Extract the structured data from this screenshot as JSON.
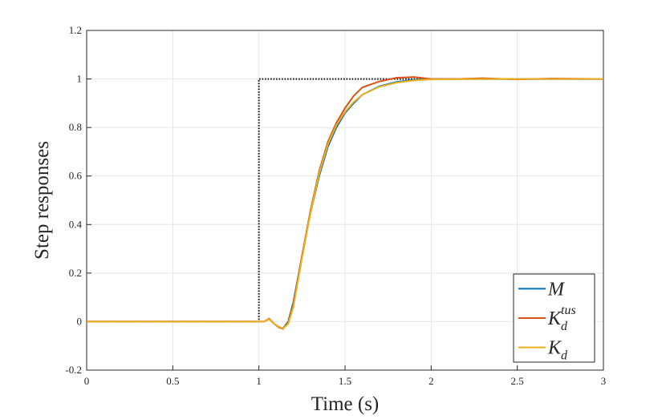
{
  "chart_data": {
    "type": "line",
    "xlabel": "Time (s)",
    "ylabel": "Step responses",
    "xlim": [
      0,
      3
    ],
    "ylim": [
      -0.2,
      1.2
    ],
    "xticks": [
      0,
      0.5,
      1,
      1.5,
      2,
      2.5,
      3
    ],
    "yticks": [
      -0.2,
      0,
      0.2,
      0.4,
      0.6,
      0.8,
      1,
      1.2
    ],
    "grid": true,
    "legend": "southeast",
    "series": [
      {
        "color": "#000000",
        "style": "dotted",
        "x": [
          0,
          1,
          1,
          3
        ],
        "values": [
          0,
          0,
          1,
          1
        ]
      },
      {
        "name": "M",
        "color": "#0072BD",
        "x": [
          0,
          1,
          1.03,
          1.06,
          1.09,
          1.12,
          1.14,
          1.17,
          1.2,
          1.25,
          1.3,
          1.35,
          1.4,
          1.45,
          1.5,
          1.55,
          1.6,
          1.7,
          1.8,
          1.9,
          2,
          2.3,
          2.6,
          3
        ],
        "values": [
          0,
          0,
          0.0,
          0.01,
          -0.01,
          -0.025,
          -0.028,
          0.0,
          0.08,
          0.27,
          0.45,
          0.6,
          0.72,
          0.8,
          0.86,
          0.9,
          0.935,
          0.97,
          0.988,
          0.996,
          1.0,
          1.0,
          1.0,
          1.0
        ]
      },
      {
        "name": "K",
        "sub": "d",
        "sup": "tus",
        "color": "#D95319",
        "x": [
          0,
          1,
          1.03,
          1.06,
          1.09,
          1.12,
          1.14,
          1.17,
          1.2,
          1.25,
          1.3,
          1.35,
          1.4,
          1.45,
          1.5,
          1.55,
          1.6,
          1.7,
          1.8,
          1.9,
          2,
          2.15,
          2.3,
          2.5,
          2.7,
          3
        ],
        "values": [
          0,
          0,
          0.0,
          0.012,
          -0.01,
          -0.025,
          -0.03,
          -0.005,
          0.07,
          0.27,
          0.46,
          0.62,
          0.74,
          0.82,
          0.88,
          0.93,
          0.965,
          0.99,
          1.005,
          1.008,
          1.0,
          1.0,
          1.003,
          0.998,
          1.002,
          1.0
        ]
      },
      {
        "name": "K",
        "sub": "d",
        "color": "#EDB120",
        "x": [
          0,
          1,
          1.03,
          1.06,
          1.09,
          1.12,
          1.14,
          1.17,
          1.2,
          1.25,
          1.3,
          1.35,
          1.4,
          1.45,
          1.5,
          1.55,
          1.6,
          1.7,
          1.8,
          1.9,
          2,
          2.3,
          2.6,
          3
        ],
        "values": [
          0,
          0,
          0.0,
          0.01,
          -0.01,
          -0.022,
          -0.028,
          -0.01,
          0.06,
          0.26,
          0.45,
          0.61,
          0.73,
          0.81,
          0.865,
          0.905,
          0.935,
          0.968,
          0.985,
          0.994,
          0.998,
          1.0,
          1.0,
          1.0
        ]
      }
    ]
  }
}
